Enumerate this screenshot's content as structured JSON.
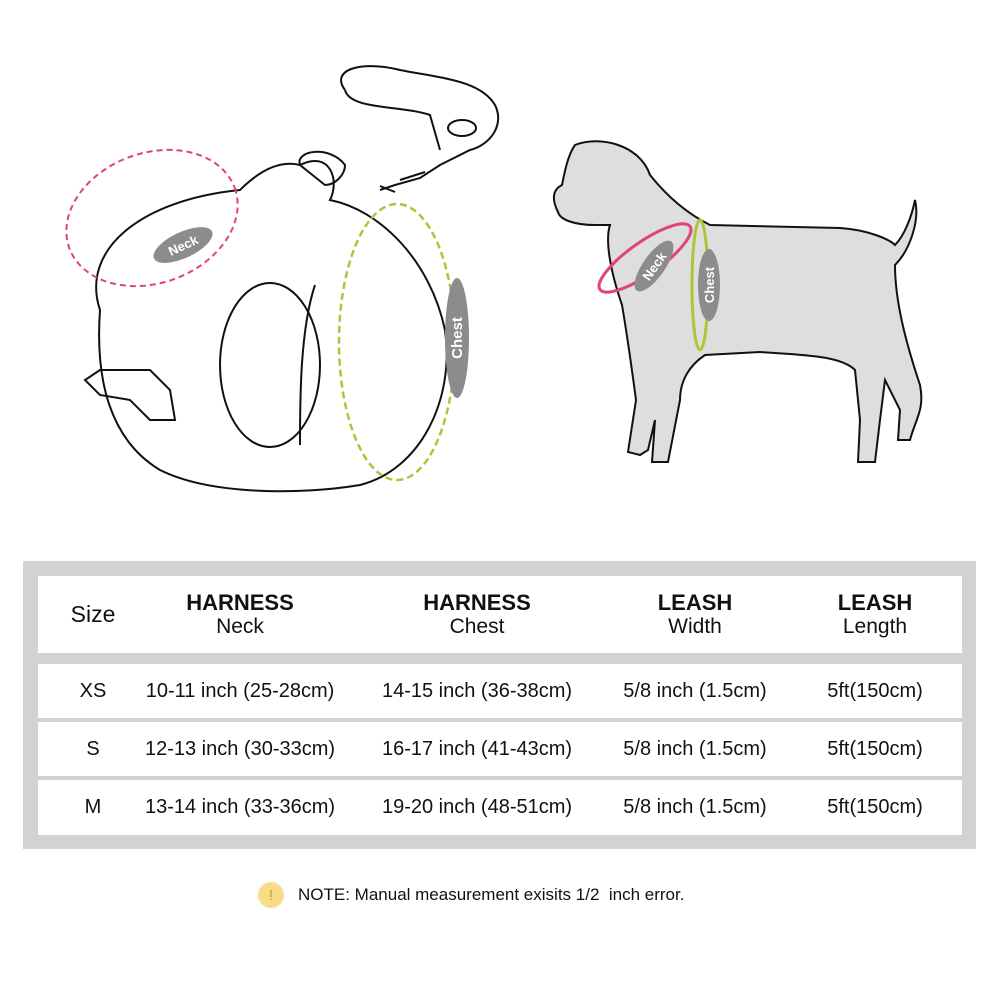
{
  "illustration": {
    "harness_labels": {
      "neck": "Neck",
      "chest": "Chest"
    },
    "dog_labels": {
      "neck": "Neck",
      "chest": "Chest"
    },
    "colors": {
      "neck_ring": "#e0457a",
      "chest_ring": "#a8c83a",
      "label_pill": "#8c8c8c",
      "dog_fill": "#dedede"
    }
  },
  "table": {
    "headers": [
      {
        "title": "Size",
        "sub": ""
      },
      {
        "title": "HARNESS",
        "sub": "Neck"
      },
      {
        "title": "HARNESS",
        "sub": "Chest"
      },
      {
        "title": "LEASH",
        "sub": "Width"
      },
      {
        "title": "LEASH",
        "sub": "Length"
      }
    ],
    "rows": [
      [
        "XS",
        "10-11 inch (25-28cm)",
        "14-15 inch (36-38cm)",
        "5/8 inch (1.5cm)",
        "5ft(150cm)"
      ],
      [
        "S",
        "12-13 inch (30-33cm)",
        "16-17 inch (41-43cm)",
        "5/8 inch (1.5cm)",
        "5ft(150cm)"
      ],
      [
        "M",
        "13-14 inch (33-36cm)",
        "19-20 inch (48-51cm)",
        "5/8 inch (1.5cm)",
        "5ft(150cm)"
      ]
    ]
  },
  "note": {
    "icon": "warning-icon",
    "symbol": "!",
    "text": "NOTE: Manual measurement exisits 1/2  inch error."
  }
}
